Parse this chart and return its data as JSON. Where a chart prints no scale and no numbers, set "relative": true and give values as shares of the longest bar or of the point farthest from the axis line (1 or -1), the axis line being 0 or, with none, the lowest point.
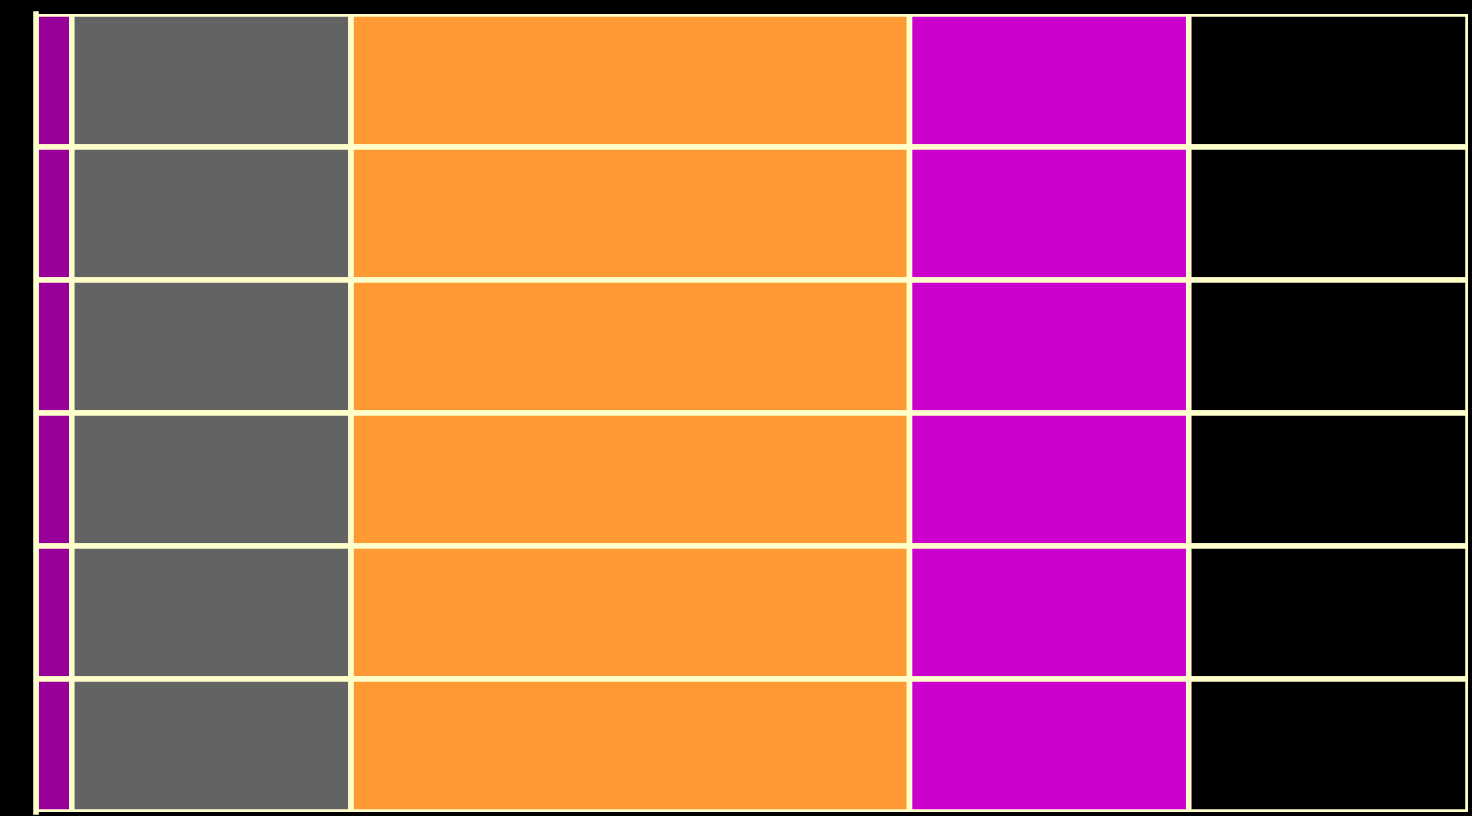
{
  "chart_data": {
    "type": "bar",
    "orientation": "horizontal",
    "stacked": true,
    "relative": true,
    "categories": [
      null,
      null,
      null,
      null,
      null,
      null
    ],
    "series": [
      {
        "color": "#990099",
        "values": [
          0.025,
          0.025,
          0.025,
          0.025,
          0.025,
          0.025
        ]
      },
      {
        "color": "#636363",
        "values": [
          0.195,
          0.195,
          0.195,
          0.195,
          0.195,
          0.195
        ]
      },
      {
        "color": "#ff9933",
        "values": [
          0.39,
          0.39,
          0.39,
          0.39,
          0.39,
          0.39
        ]
      },
      {
        "color": "#cc00cc",
        "values": [
          0.195,
          0.195,
          0.195,
          0.195,
          0.195,
          0.195
        ]
      },
      {
        "color": "#000000",
        "values": [
          0.195,
          0.195,
          0.195,
          0.195,
          0.195,
          0.195
        ]
      }
    ]
  }
}
